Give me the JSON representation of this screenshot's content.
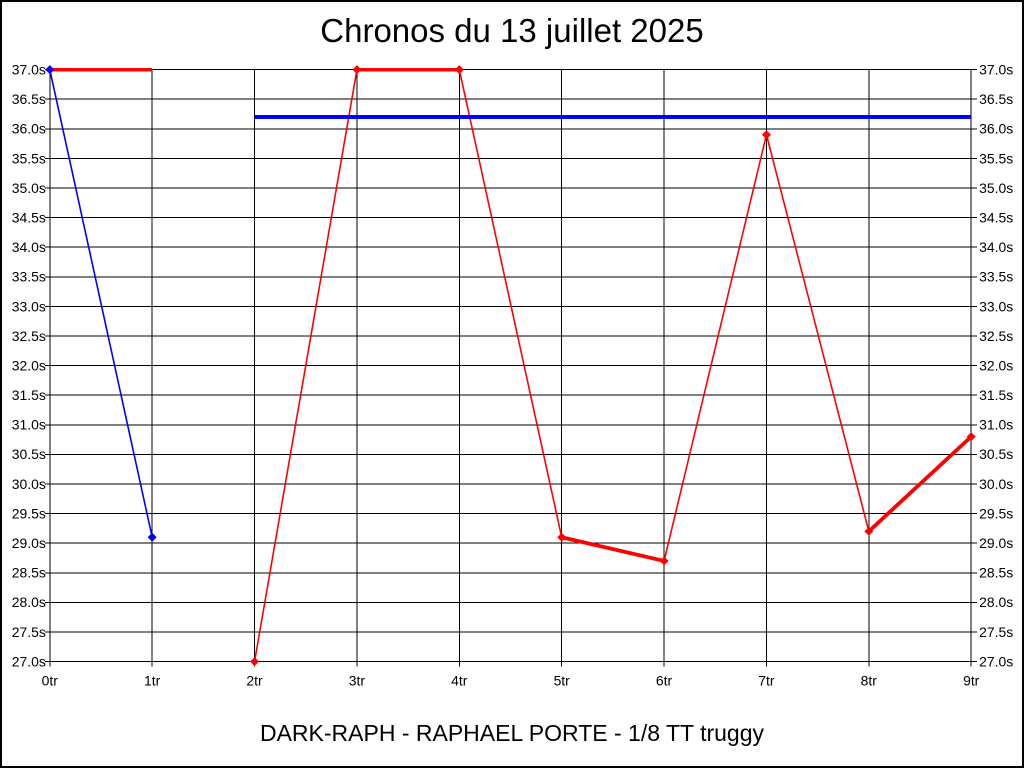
{
  "chart_data": {
    "type": "line",
    "title": "Chronos du 13 juillet 2025",
    "caption": "DARK-RAPH - RAPHAEL PORTE - 1/8 TT truggy",
    "x_tick_labels": [
      "0tr",
      "1tr",
      "2tr",
      "3tr",
      "4tr",
      "5tr",
      "6tr",
      "7tr",
      "8tr",
      "9tr"
    ],
    "y_axis": {
      "min": 27.0,
      "max": 37.0,
      "step": 0.5,
      "unit": "s"
    },
    "grid": true,
    "legend": "none",
    "colors": {
      "red_series": "#ff0000",
      "blue_series": "#0000ff",
      "grid": "#000000",
      "background": "#ffffff",
      "text": "#000000"
    },
    "series": [
      {
        "name": "red-capped-flat-segment",
        "color": "#ff0000",
        "markers": false,
        "points": [
          [
            0,
            37.0
          ],
          [
            1,
            37.0
          ]
        ]
      },
      {
        "name": "red-lap-times",
        "color": "#ff0000",
        "markers": true,
        "points": [
          [
            2,
            27.0
          ],
          [
            3,
            37.0
          ],
          [
            4,
            37.0
          ],
          [
            5,
            29.1
          ],
          [
            6,
            28.7
          ],
          [
            7,
            35.9
          ],
          [
            8,
            29.2
          ],
          [
            9,
            30.8
          ]
        ]
      },
      {
        "name": "blue-lap-times",
        "color": "#0000ff",
        "markers": true,
        "points": [
          [
            0,
            37.0
          ],
          [
            1,
            29.1
          ]
        ]
      },
      {
        "name": "blue-reference-line",
        "color": "#0000ff",
        "markers": false,
        "points": [
          [
            2,
            36.2
          ],
          [
            9,
            36.2
          ]
        ]
      }
    ]
  }
}
